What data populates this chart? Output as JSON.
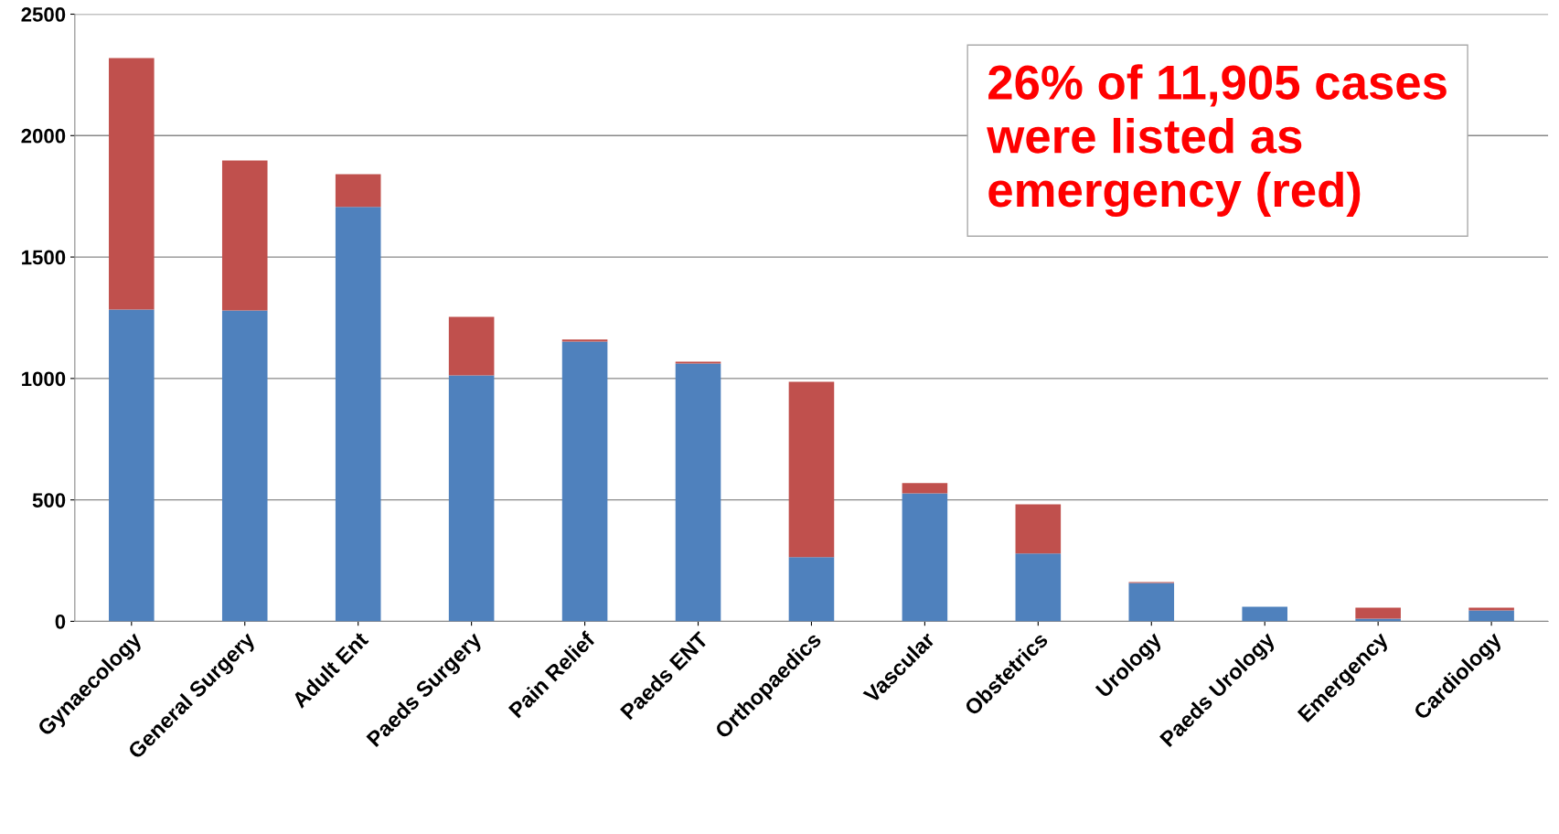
{
  "chart_data": {
    "type": "bar",
    "stacked": true,
    "categories": [
      "Gynaecology",
      "General Surgery",
      "Adult Ent",
      "Paeds Surgery",
      "Pain Relief",
      "Paeds ENT",
      "Orthopaedics",
      "Vascular",
      "Obstetrics",
      "Urology",
      "Paeds Urology",
      "Emergency",
      "Cardiology"
    ],
    "series": [
      {
        "color": "#4f81bd",
        "values": [
          1284,
          1280,
          1706,
          1013,
          1152,
          1062,
          264,
          527,
          279,
          158,
          60,
          11,
          45
        ]
      },
      {
        "color": "#c0504d",
        "values": [
          1035,
          618,
          135,
          241,
          8,
          7,
          722,
          42,
          203,
          4,
          0,
          45,
          11
        ]
      }
    ],
    "ylim": [
      0,
      2500
    ],
    "yticks": [
      0,
      500,
      1000,
      1500,
      2000,
      2500
    ],
    "grid": "y",
    "legend": false,
    "annotations": [
      "26% of 11,905 cases were listed as emergency (red)"
    ]
  }
}
